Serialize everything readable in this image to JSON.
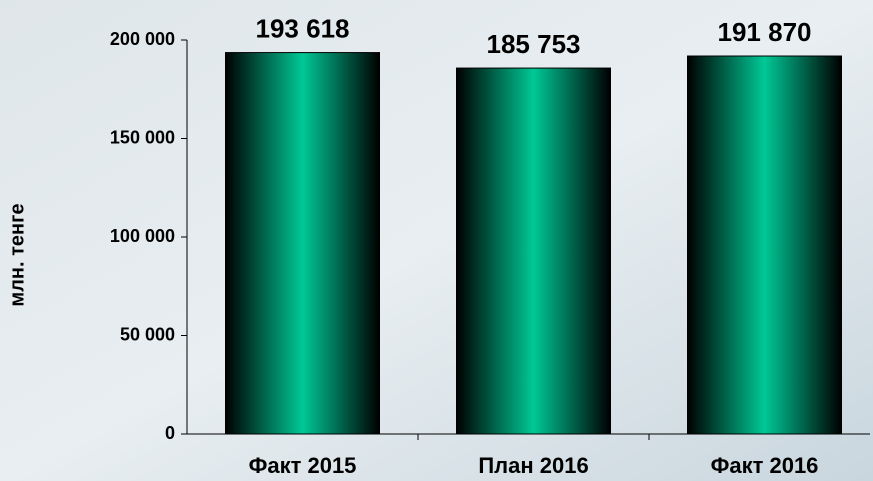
{
  "chart_data": {
    "type": "bar",
    "y_axis_label": "млн. тенге",
    "categories": [
      "Факт 2015",
      "План 2016",
      "Факт 2016"
    ],
    "values": [
      193618,
      185753,
      191870
    ],
    "value_labels": [
      "193 618",
      "185 753",
      "191 870"
    ],
    "color": "#00c896",
    "ylim": [
      0,
      200000
    ],
    "yticks": [
      0,
      {
        "value": 50000,
        "label": "50 000"
      },
      {
        "value": 100000,
        "label": "100 000"
      },
      {
        "value": 150000,
        "label": "150 000"
      },
      {
        "value": 200000,
        "label": "200 000"
      }
    ]
  }
}
